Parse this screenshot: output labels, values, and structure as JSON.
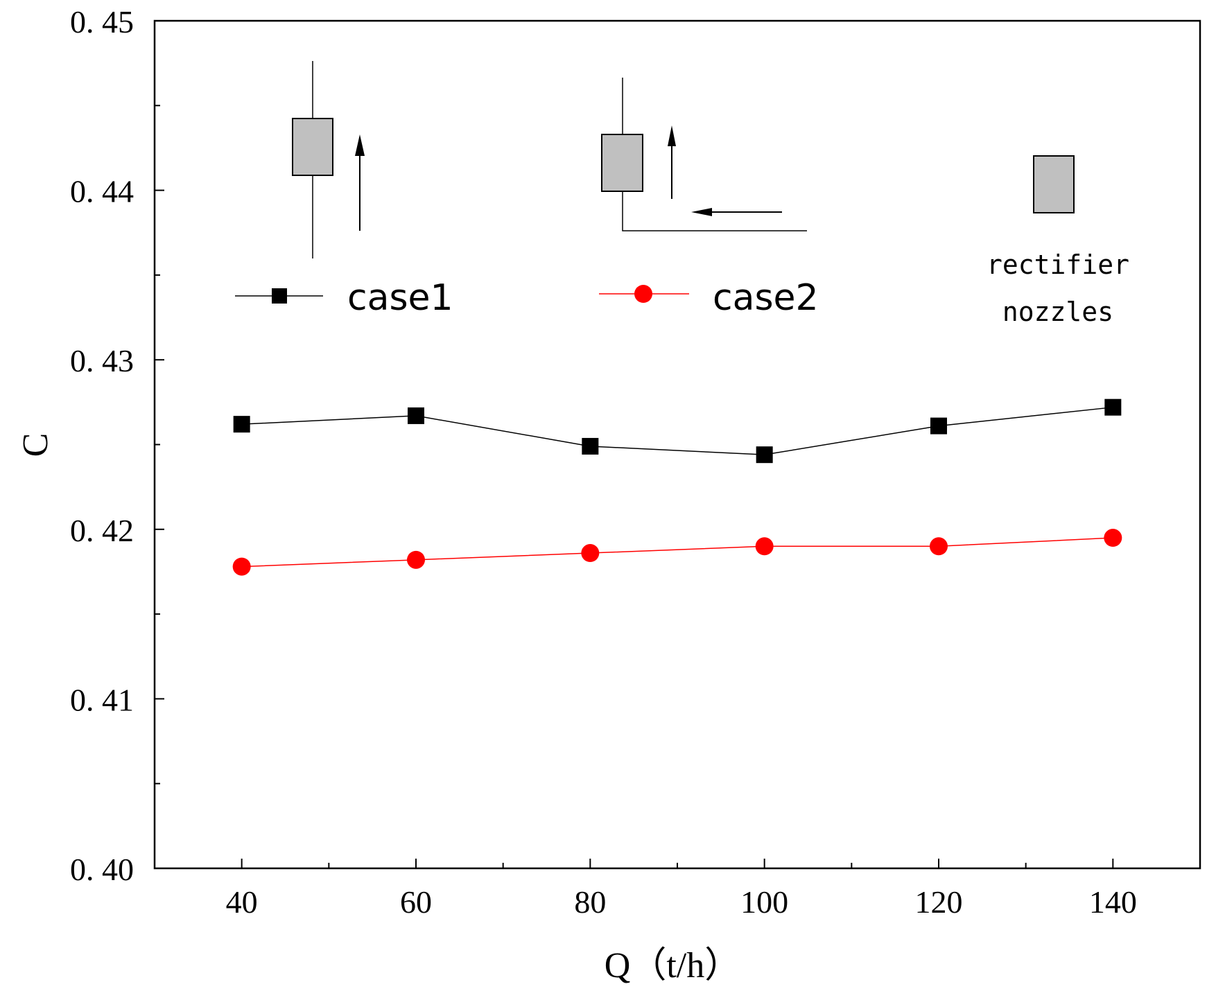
{
  "chart_data": {
    "type": "line",
    "title": "",
    "xlabel": "Q（t/h）",
    "ylabel": "C",
    "xlim": [
      30,
      150
    ],
    "ylim": [
      0.4,
      0.45
    ],
    "x": [
      40,
      60,
      80,
      100,
      120,
      140
    ],
    "x_ticks": [
      "40",
      "60",
      "80",
      "100",
      "120",
      "140"
    ],
    "y_ticks": [
      "0. 40",
      "0. 41",
      "0. 42",
      "0. 43",
      "0. 44",
      "0. 45"
    ],
    "y_tick_values": [
      0.4,
      0.41,
      0.42,
      0.43,
      0.44,
      0.45
    ],
    "series": [
      {
        "name": "case1",
        "marker": "square",
        "color": "#000000",
        "values": [
          0.4262,
          0.4267,
          0.4249,
          0.4244,
          0.4261,
          0.4272
        ]
      },
      {
        "name": "case2",
        "marker": "circle",
        "color": "#ff0000",
        "values": [
          0.4178,
          0.4182,
          0.4186,
          0.419,
          0.419,
          0.4195
        ]
      }
    ],
    "legend_position": "top",
    "annotations": {
      "rectifier_label": "rectifier",
      "nozzles_label": "nozzles"
    }
  }
}
